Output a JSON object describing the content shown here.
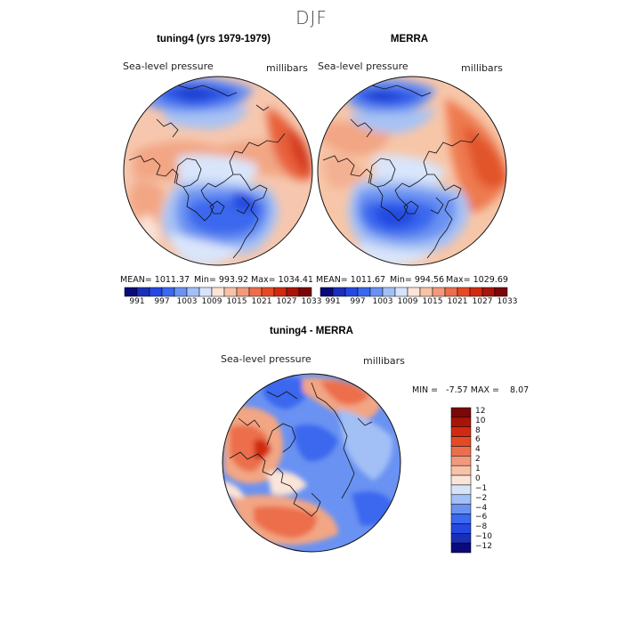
{
  "figure": {
    "season": "DJF"
  },
  "panels": {
    "model": {
      "title": "tuning4 (yrs 1979-1979)",
      "variable": "Sea-level pressure",
      "units": "millibars",
      "stats": {
        "mean": "MEAN= 1011.37",
        "min": "Min= 993.92",
        "max": "Max= 1034.41"
      }
    },
    "obs": {
      "title": "MERRA",
      "variable": "Sea-level pressure",
      "units": "millibars",
      "stats": {
        "mean": "MEAN= 1011.67",
        "min": "Min= 994.56",
        "max": "Max= 1029.69"
      }
    },
    "diff": {
      "title": "tuning4 - MERRA",
      "variable": "Sea-level pressure",
      "units": "millibars",
      "minmax": "MIN =   -7.57 MAX =    8.07"
    }
  },
  "colorbars": {
    "top": {
      "labels": [
        "991",
        "997",
        "1003",
        "1009",
        "1015",
        "1021",
        "1027",
        "1033"
      ],
      "colors": [
        "#0a0a7a",
        "#1a2fb8",
        "#2448e0",
        "#3a68ee",
        "#6a92f2",
        "#a2bff6",
        "#d6e4fa",
        "#fbe4d8",
        "#f7c2a8",
        "#f2997c",
        "#ec6e4c",
        "#e54a26",
        "#d12a10",
        "#a8140a",
        "#7a0808"
      ]
    },
    "diff": {
      "labels": [
        "12",
        "10",
        "8",
        "6",
        "4",
        "2",
        "1",
        "0",
        "−1",
        "−2",
        "−4",
        "−6",
        "−8",
        "−10",
        "−12"
      ],
      "colors": [
        "#7a0808",
        "#a8140a",
        "#d12a10",
        "#e54a26",
        "#ec6e4c",
        "#f2997c",
        "#f7c2a8",
        "#fbe4d8",
        "#d6e4fa",
        "#a2bff6",
        "#6a92f2",
        "#3a68ee",
        "#2448e0",
        "#1a2fb8",
        "#0a0a7a"
      ]
    }
  }
}
